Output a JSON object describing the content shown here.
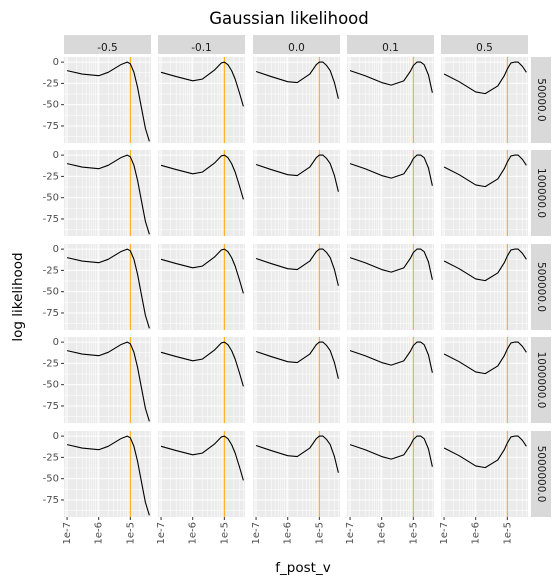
{
  "chart_data": {
    "type": "line",
    "title": "Gaussian likelihood",
    "xlabel": "f_post_v",
    "ylabel": "log likelihood",
    "x_scale": "log10",
    "xlim": [
      8e-08,
      4.5e-05
    ],
    "ylim": [
      -95,
      6
    ],
    "x_tick_labels": [
      "1e-7",
      "1e-6",
      "1e-5"
    ],
    "y_tick_labels": [
      "0",
      "-25",
      "-50",
      "-75"
    ],
    "y_tick_values": [
      0,
      -25,
      -50,
      -75
    ],
    "x_tick_values": [
      1e-07,
      1e-06,
      1e-05
    ],
    "vline_x": 1e-05,
    "vline_color": "#FFA500",
    "line_color": "#000000",
    "panel_bg": "#EBEBEB",
    "strip_bg": "#D9D9D9",
    "grid": true,
    "col_facet_labels": [
      "-0.5",
      "-0.1",
      "0.0",
      "0.1",
      "0.5"
    ],
    "row_facet_labels": [
      "50000.0",
      "100000.0",
      "500000.0",
      "1000000.0",
      "5000000.0"
    ],
    "x": [
      1e-07,
      3e-07,
      1e-06,
      2e-06,
      5e-06,
      8e-06,
      1e-05,
      1.3e-05,
      1.7e-05,
      2.2e-05,
      3e-05,
      4e-05
    ],
    "series": [
      {
        "values": [
          -10,
          -14,
          -16,
          -12,
          -3,
          0,
          -2,
          -12,
          -30,
          -52,
          -78,
          -93
        ]
      },
      {
        "values": [
          -12,
          -17,
          -22,
          -20,
          -9,
          -1,
          0,
          -3,
          -10,
          -20,
          -36,
          -52
        ]
      },
      {
        "values": [
          -11,
          -17,
          -23,
          -24,
          -14,
          -3,
          0,
          0,
          -4,
          -10,
          -24,
          -43
        ]
      },
      {
        "values": [
          -10,
          -16,
          -24,
          -27,
          -22,
          -11,
          -4,
          0,
          0,
          -3,
          -15,
          -36
        ]
      },
      {
        "values": [
          -14,
          -23,
          -35,
          -37,
          -28,
          -16,
          -8,
          -1,
          0,
          0,
          -5,
          -12
        ]
      }
    ]
  }
}
